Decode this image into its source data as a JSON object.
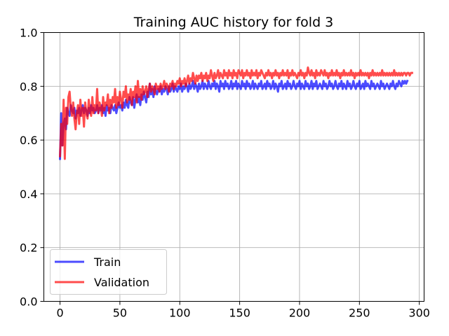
{
  "chart_data": {
    "type": "line",
    "title": "Training AUC history for fold 3",
    "xlabel": "",
    "ylabel": "",
    "xlim": [
      -13.5,
      304
    ],
    "ylim": [
      0.0,
      1.0
    ],
    "xticks": [
      0,
      50,
      100,
      150,
      200,
      250,
      300
    ],
    "yticks": [
      0.0,
      0.2,
      0.4,
      0.6,
      0.8,
      1.0
    ],
    "xtick_labels": [
      "0",
      "50",
      "100",
      "150",
      "200",
      "250",
      "300"
    ],
    "ytick_labels": [
      "0.0",
      "0.2",
      "0.4",
      "0.6",
      "0.8",
      "1.0"
    ],
    "grid": true,
    "legend_position": "lower-left",
    "series": [
      {
        "name": "Train",
        "color": "#0000ff",
        "x_start": 0,
        "x_step": 1,
        "values": [
          0.53,
          0.7,
          0.58,
          0.66,
          0.68,
          0.64,
          0.72,
          0.7,
          0.69,
          0.73,
          0.71,
          0.7,
          0.72,
          0.68,
          0.71,
          0.7,
          0.72,
          0.69,
          0.71,
          0.73,
          0.7,
          0.72,
          0.71,
          0.69,
          0.72,
          0.7,
          0.73,
          0.71,
          0.72,
          0.7,
          0.71,
          0.73,
          0.7,
          0.72,
          0.71,
          0.73,
          0.7,
          0.72,
          0.69,
          0.73,
          0.71,
          0.72,
          0.7,
          0.73,
          0.72,
          0.71,
          0.73,
          0.7,
          0.72,
          0.74,
          0.72,
          0.73,
          0.71,
          0.74,
          0.72,
          0.75,
          0.73,
          0.72,
          0.76,
          0.74,
          0.73,
          0.76,
          0.72,
          0.75,
          0.77,
          0.74,
          0.76,
          0.73,
          0.77,
          0.75,
          0.78,
          0.76,
          0.74,
          0.78,
          0.76,
          0.81,
          0.77,
          0.79,
          0.76,
          0.8,
          0.78,
          0.77,
          0.79,
          0.78,
          0.8,
          0.77,
          0.79,
          0.78,
          0.8,
          0.79,
          0.77,
          0.8,
          0.78,
          0.79,
          0.81,
          0.78,
          0.8,
          0.79,
          0.78,
          0.8,
          0.79,
          0.81,
          0.78,
          0.8,
          0.79,
          0.81,
          0.8,
          0.78,
          0.81,
          0.79,
          0.8,
          0.82,
          0.79,
          0.81,
          0.8,
          0.78,
          0.81,
          0.79,
          0.8,
          0.82,
          0.79,
          0.81,
          0.8,
          0.79,
          0.82,
          0.8,
          0.79,
          0.81,
          0.8,
          0.82,
          0.79,
          0.81,
          0.8,
          0.78,
          0.82,
          0.8,
          0.81,
          0.79,
          0.82,
          0.8,
          0.81,
          0.79,
          0.8,
          0.82,
          0.79,
          0.81,
          0.8,
          0.82,
          0.79,
          0.81,
          0.8,
          0.79,
          0.82,
          0.8,
          0.81,
          0.79,
          0.82,
          0.8,
          0.81,
          0.79,
          0.8,
          0.82,
          0.79,
          0.81,
          0.8,
          0.79,
          0.81,
          0.8,
          0.82,
          0.79,
          0.8,
          0.81,
          0.79,
          0.82,
          0.8,
          0.81,
          0.79,
          0.8,
          0.82,
          0.79,
          0.81,
          0.8,
          0.78,
          0.81,
          0.8,
          0.82,
          0.79,
          0.8,
          0.81,
          0.79,
          0.82,
          0.8,
          0.81,
          0.79,
          0.8,
          0.82,
          0.8,
          0.79,
          0.81,
          0.8,
          0.82,
          0.79,
          0.81,
          0.8,
          0.79,
          0.82,
          0.8,
          0.81,
          0.79,
          0.8,
          0.82,
          0.79,
          0.81,
          0.8,
          0.82,
          0.79,
          0.8,
          0.81,
          0.8,
          0.79,
          0.82,
          0.8,
          0.81,
          0.79,
          0.8,
          0.82,
          0.8,
          0.81,
          0.79,
          0.8,
          0.82,
          0.8,
          0.79,
          0.81,
          0.8,
          0.82,
          0.79,
          0.81,
          0.8,
          0.79,
          0.82,
          0.8,
          0.81,
          0.79,
          0.8,
          0.82,
          0.8,
          0.79,
          0.81,
          0.8,
          0.82,
          0.79,
          0.8,
          0.81,
          0.79,
          0.82,
          0.8,
          0.81,
          0.8,
          0.79,
          0.82,
          0.8,
          0.81,
          0.79,
          0.8,
          0.81,
          0.8,
          0.79,
          0.82,
          0.8,
          0.81,
          0.79,
          0.8,
          0.81,
          0.8,
          0.79,
          0.81,
          0.8,
          0.82,
          0.8,
          0.79,
          0.81,
          0.8,
          0.82,
          0.81,
          0.8,
          0.82,
          0.81,
          0.82,
          0.81,
          0.82
        ]
      },
      {
        "name": "Validation",
        "color": "#ff0000",
        "x_start": 0,
        "x_step": 1,
        "values": [
          0.54,
          0.66,
          0.58,
          0.75,
          0.53,
          0.72,
          0.66,
          0.76,
          0.78,
          0.72,
          0.69,
          0.74,
          0.68,
          0.64,
          0.7,
          0.73,
          0.66,
          0.75,
          0.69,
          0.72,
          0.65,
          0.74,
          0.7,
          0.68,
          0.75,
          0.71,
          0.69,
          0.76,
          0.7,
          0.73,
          0.71,
          0.79,
          0.7,
          0.74,
          0.72,
          0.69,
          0.76,
          0.71,
          0.74,
          0.73,
          0.77,
          0.7,
          0.75,
          0.72,
          0.76,
          0.74,
          0.79,
          0.72,
          0.76,
          0.73,
          0.78,
          0.75,
          0.72,
          0.78,
          0.76,
          0.8,
          0.74,
          0.77,
          0.75,
          0.79,
          0.73,
          0.78,
          0.76,
          0.8,
          0.74,
          0.82,
          0.76,
          0.79,
          0.75,
          0.8,
          0.77,
          0.78,
          0.8,
          0.76,
          0.79,
          0.81,
          0.78,
          0.8,
          0.79,
          0.77,
          0.81,
          0.79,
          0.8,
          0.78,
          0.81,
          0.79,
          0.8,
          0.82,
          0.79,
          0.81,
          0.8,
          0.78,
          0.81,
          0.8,
          0.82,
          0.79,
          0.81,
          0.8,
          0.82,
          0.81,
          0.83,
          0.8,
          0.82,
          0.81,
          0.83,
          0.8,
          0.82,
          0.84,
          0.81,
          0.83,
          0.82,
          0.85,
          0.83,
          0.81,
          0.84,
          0.82,
          0.84,
          0.83,
          0.85,
          0.82,
          0.84,
          0.83,
          0.85,
          0.82,
          0.84,
          0.83,
          0.86,
          0.84,
          0.82,
          0.85,
          0.83,
          0.84,
          0.86,
          0.83,
          0.85,
          0.84,
          0.83,
          0.86,
          0.84,
          0.85,
          0.83,
          0.86,
          0.84,
          0.85,
          0.83,
          0.86,
          0.84,
          0.85,
          0.83,
          0.86,
          0.85,
          0.84,
          0.86,
          0.83,
          0.85,
          0.84,
          0.86,
          0.84,
          0.85,
          0.83,
          0.86,
          0.84,
          0.85,
          0.84,
          0.86,
          0.83,
          0.85,
          0.84,
          0.86,
          0.85,
          0.84,
          0.83,
          0.85,
          0.84,
          0.86,
          0.84,
          0.85,
          0.83,
          0.85,
          0.84,
          0.86,
          0.84,
          0.85,
          0.83,
          0.85,
          0.84,
          0.86,
          0.84,
          0.85,
          0.84,
          0.86,
          0.83,
          0.85,
          0.84,
          0.86,
          0.84,
          0.85,
          0.84,
          0.83,
          0.85,
          0.84,
          0.86,
          0.84,
          0.85,
          0.83,
          0.85,
          0.84,
          0.87,
          0.85,
          0.84,
          0.86,
          0.84,
          0.85,
          0.83,
          0.86,
          0.84,
          0.85,
          0.84,
          0.86,
          0.85,
          0.84,
          0.86,
          0.84,
          0.85,
          0.83,
          0.85,
          0.84,
          0.86,
          0.84,
          0.85,
          0.84,
          0.86,
          0.84,
          0.85,
          0.83,
          0.85,
          0.84,
          0.86,
          0.84,
          0.85,
          0.84,
          0.85,
          0.84,
          0.86,
          0.84,
          0.85,
          0.83,
          0.85,
          0.84,
          0.85,
          0.84,
          0.86,
          0.84,
          0.85,
          0.84,
          0.85,
          0.84,
          0.85,
          0.83,
          0.85,
          0.84,
          0.86,
          0.84,
          0.85,
          0.84,
          0.85,
          0.84,
          0.85,
          0.84,
          0.86,
          0.84,
          0.85,
          0.84,
          0.85,
          0.84,
          0.85,
          0.84,
          0.85,
          0.84,
          0.86,
          0.84,
          0.85,
          0.84,
          0.85,
          0.84,
          0.85,
          0.84,
          0.85,
          0.85,
          0.84,
          0.85,
          0.85,
          0.84,
          0.85,
          0.85
        ]
      }
    ]
  }
}
